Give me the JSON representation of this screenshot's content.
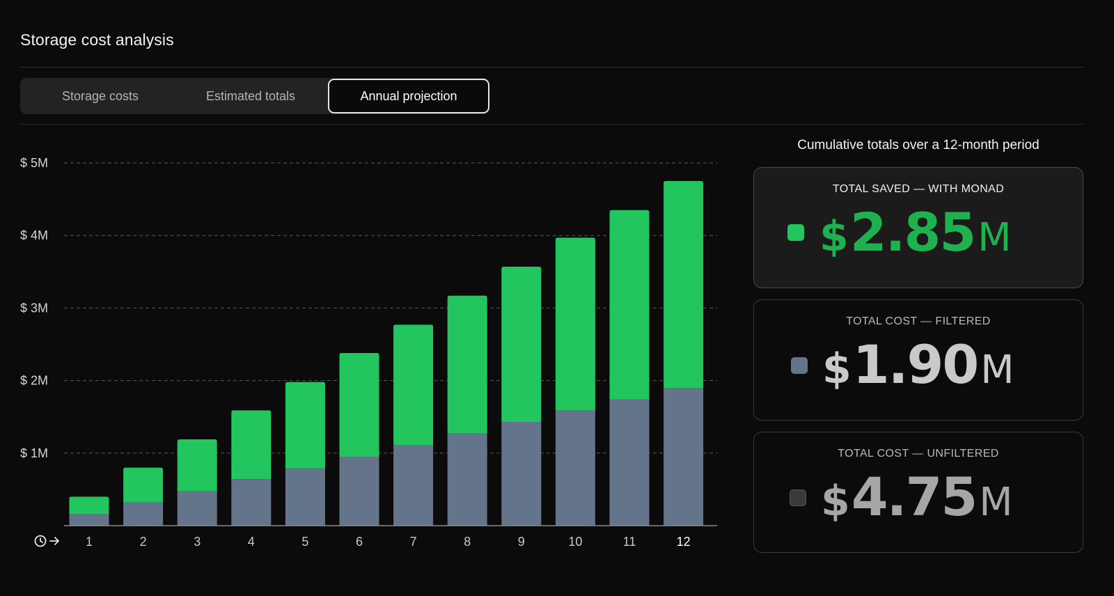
{
  "page": {
    "title": "Storage cost analysis"
  },
  "tabs": [
    {
      "label": "Storage costs",
      "active": false
    },
    {
      "label": "Estimated totals",
      "active": false
    },
    {
      "label": "Annual projection",
      "active": true
    }
  ],
  "summary": {
    "title": "Cumulative totals over a 12-month period",
    "cards": [
      {
        "label": "TOTAL SAVED — WITH MONAD",
        "currency": "$",
        "value": "2.85",
        "unit": "M",
        "color": "#22c55e"
      },
      {
        "label": "TOTAL COST — FILTERED",
        "currency": "$",
        "value": "1.90",
        "unit": "M",
        "color": "#64748b"
      },
      {
        "label": "TOTAL COST — UNFILTERED",
        "currency": "$",
        "value": "4.75",
        "unit": "M",
        "color": "#3a3a3a"
      }
    ]
  },
  "colors": {
    "saved": "#22c55e",
    "filtered": "#64748b",
    "unfiltered": "#3a3a3a",
    "background": "#0b0b0b"
  },
  "chart_data": {
    "type": "bar",
    "stacked": true,
    "title": "",
    "xlabel": "",
    "ylabel": "",
    "x_axis_icon": "clock-arrow-icon",
    "categories": [
      "1",
      "2",
      "3",
      "4",
      "5",
      "6",
      "7",
      "8",
      "9",
      "10",
      "11",
      "12"
    ],
    "series": [
      {
        "name": "Total cost — filtered",
        "color": "#64748b",
        "values": [
          0.16,
          0.32,
          0.48,
          0.64,
          0.79,
          0.95,
          1.11,
          1.27,
          1.43,
          1.59,
          1.74,
          1.9
        ]
      },
      {
        "name": "Total saved — with Monad",
        "color": "#22c55e",
        "values": [
          0.24,
          0.48,
          0.71,
          0.95,
          1.19,
          1.43,
          1.66,
          1.9,
          2.14,
          2.38,
          2.61,
          2.85
        ]
      }
    ],
    "yticks": [
      {
        "value": 1,
        "label": "$ 1M"
      },
      {
        "value": 2,
        "label": "$ 2M"
      },
      {
        "value": 3,
        "label": "$ 3M"
      },
      {
        "value": 4,
        "label": "$ 4M"
      },
      {
        "value": 5,
        "label": "$ 5M"
      }
    ],
    "ylim": [
      0,
      5
    ],
    "grid": true,
    "units": "$M"
  }
}
